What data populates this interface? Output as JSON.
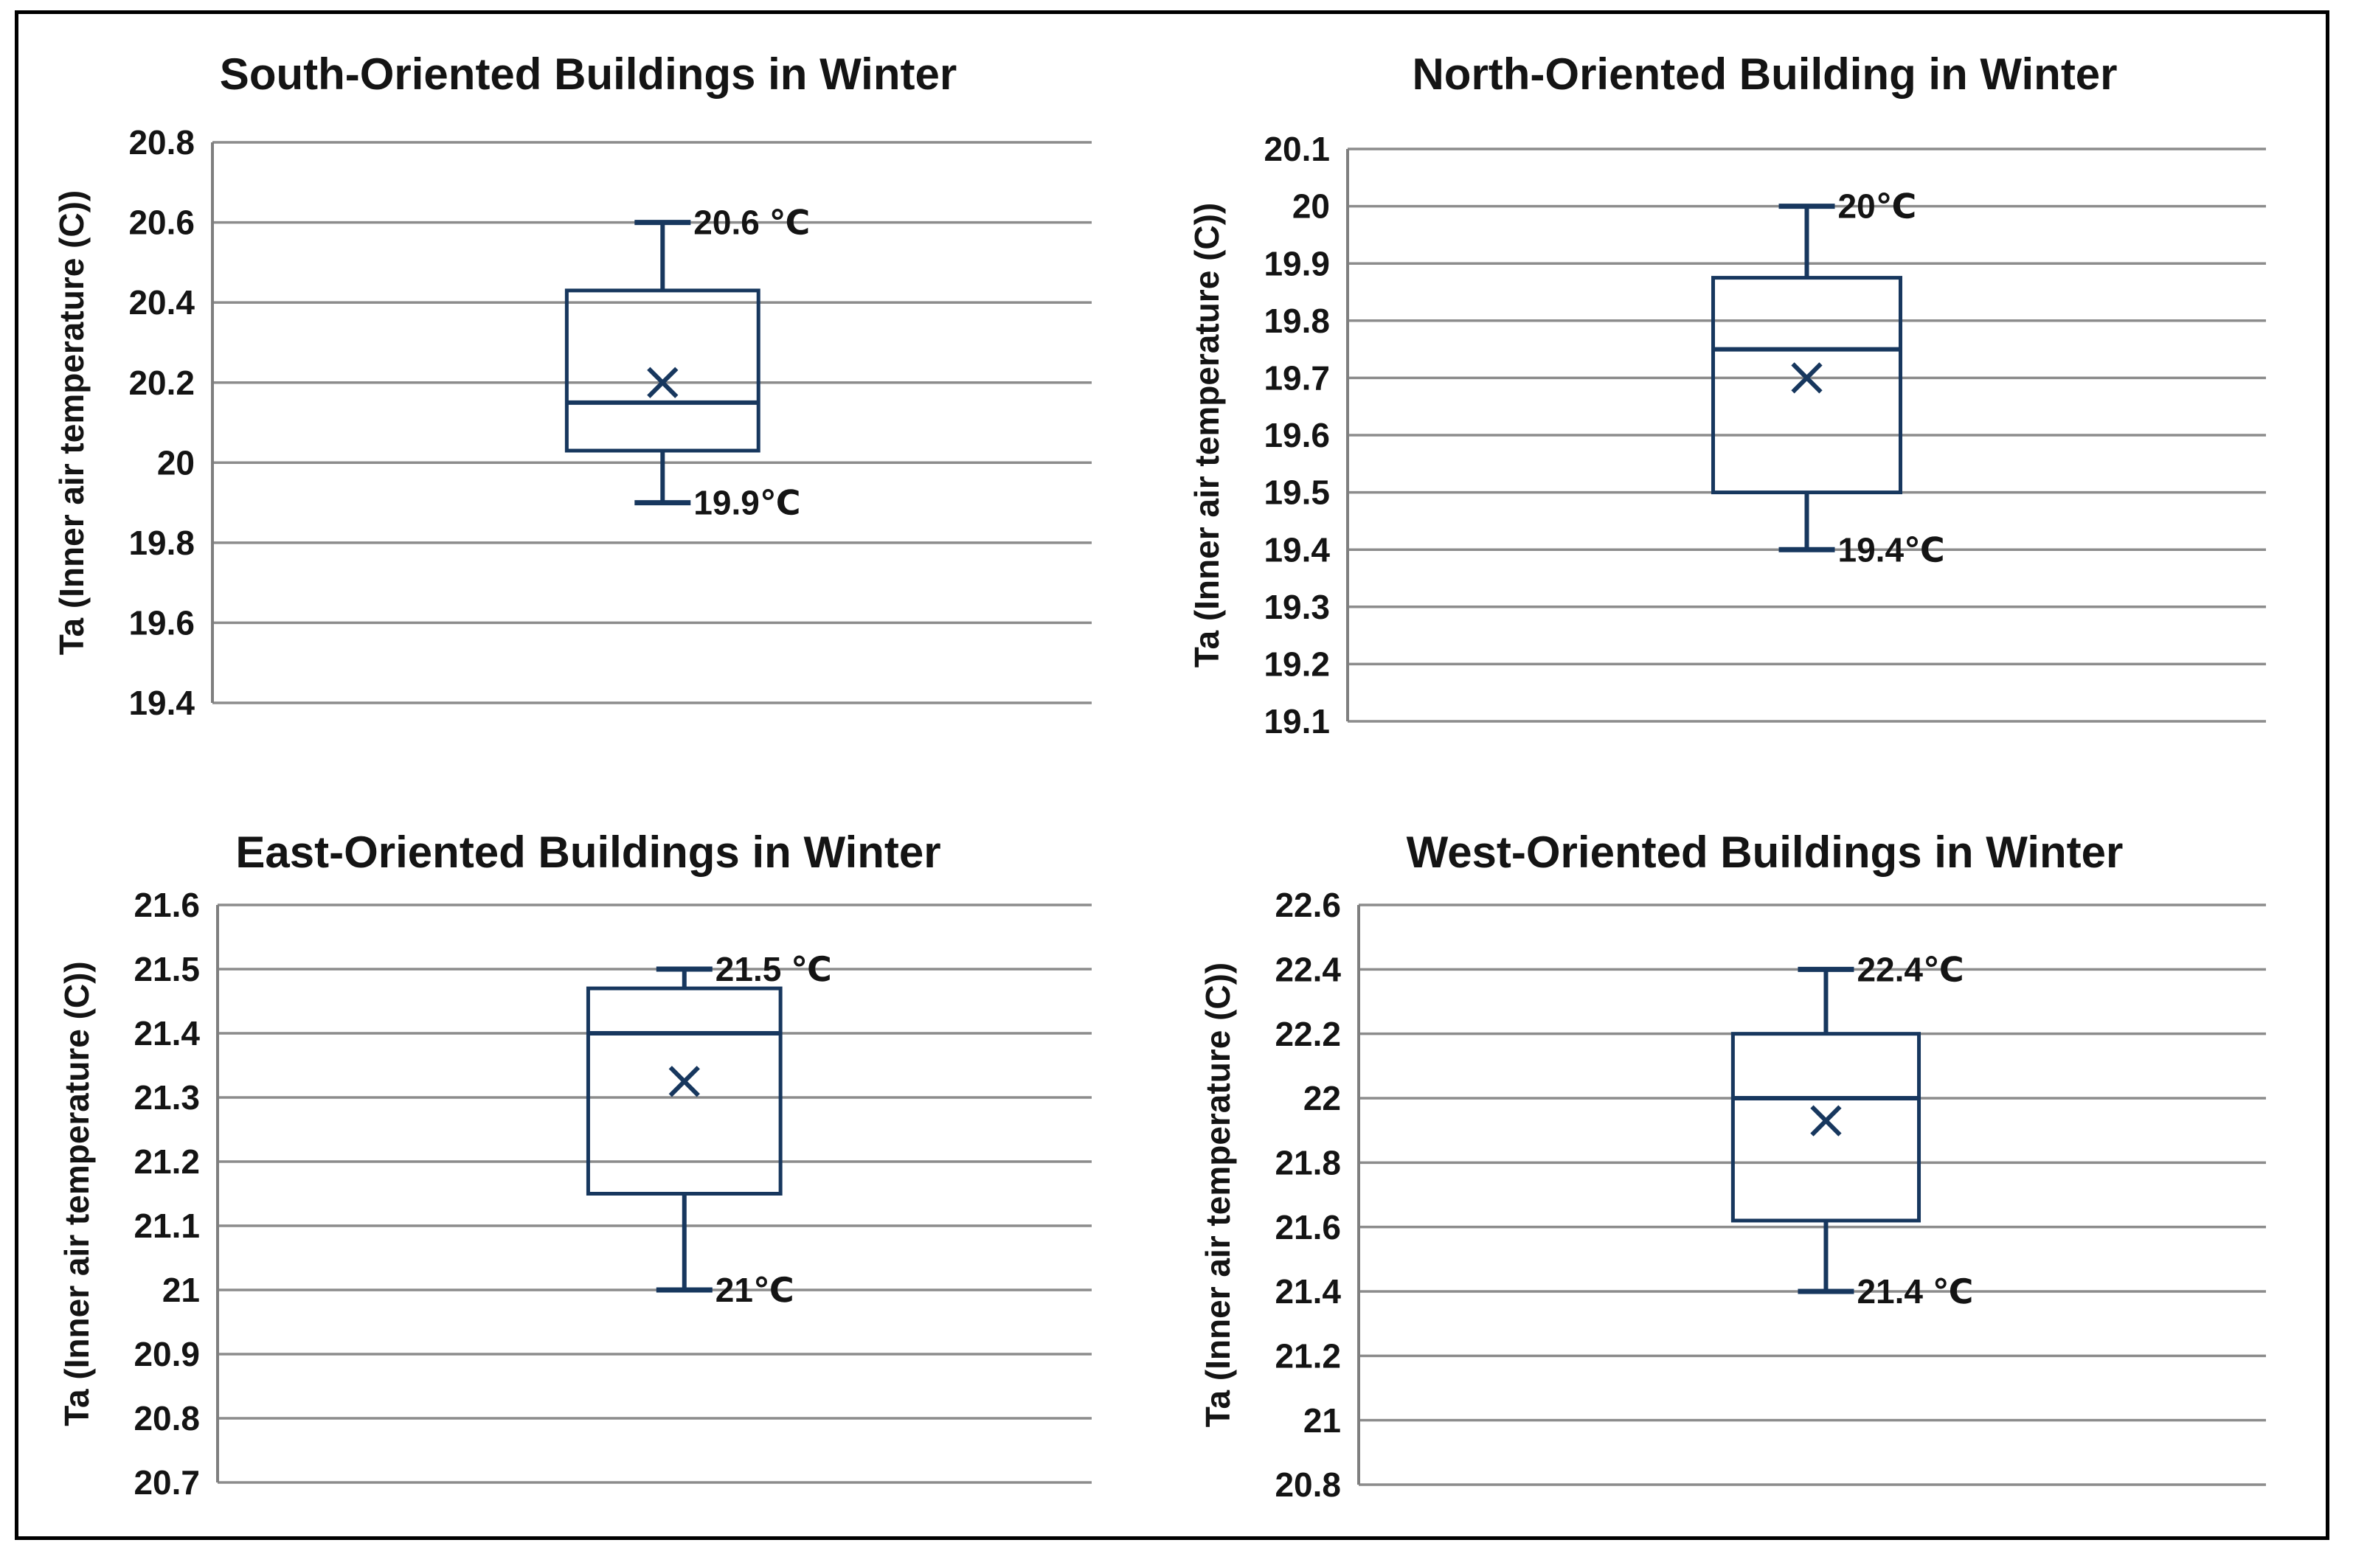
{
  "style": {
    "background": "#FFFFFF",
    "frame_color": "#000000",
    "box_color": "#17375E",
    "grid_color": "#8C8C8C",
    "axis_color": "#7F7F7F",
    "text_color": "#141414"
  },
  "chart_data": [
    {
      "type": "box",
      "title": "South-Oriented Buildings in Winter",
      "ylabel": "Ta (Inner air temperature (C))",
      "ylim": [
        19.4,
        20.8
      ],
      "grid": true,
      "tick_side": "left",
      "ticks": [
        {
          "v": 20.8,
          "label": "20.8"
        },
        {
          "v": 20.6,
          "label": "20.6"
        },
        {
          "v": 20.4,
          "label": "20.4"
        },
        {
          "v": 20.2,
          "label": "20.2"
        },
        {
          "v": 20.0,
          "label": "20"
        },
        {
          "v": 19.8,
          "label": "19.8"
        },
        {
          "v": 19.6,
          "label": "19.6"
        },
        {
          "v": 19.4,
          "label": "19.4"
        }
      ],
      "box": {
        "whisker_min": 19.9,
        "q1": 20.03,
        "median": 20.15,
        "mean": 20.2,
        "q3": 20.43,
        "whisker_max": 20.6
      },
      "annotations": {
        "max_label": "20.6 ℃",
        "min_label": "19.9℃"
      },
      "layout": {
        "box_center_frac": 0.512,
        "box_width_frac": 0.218
      }
    },
    {
      "type": "box",
      "title": "North-Oriented Building in Winter",
      "ylabel": "Ta (Inner air temperature (C))",
      "ylim": [
        19.1,
        20.1
      ],
      "grid": true,
      "tick_side": "left",
      "ticks": [
        {
          "v": 20.1,
          "label": "20.1"
        },
        {
          "v": 20.0,
          "label": "20"
        },
        {
          "v": 19.9,
          "label": "19.9"
        },
        {
          "v": 19.8,
          "label": "19.8"
        },
        {
          "v": 19.7,
          "label": "19.7"
        },
        {
          "v": 19.6,
          "label": "19.6"
        },
        {
          "v": 19.5,
          "label": "19.5"
        },
        {
          "v": 19.4,
          "label": "19.4"
        },
        {
          "v": 19.3,
          "label": "19.3"
        },
        {
          "v": 19.2,
          "label": "19.2"
        },
        {
          "v": 19.1,
          "label": "19.1"
        }
      ],
      "box": {
        "whisker_min": 19.4,
        "q1": 19.5,
        "median": 19.75,
        "mean": 19.7,
        "q3": 19.875,
        "whisker_max": 20.0
      },
      "annotations": {
        "max_label": "20℃",
        "min_label": "19.4℃"
      },
      "layout": {
        "box_center_frac": 0.5,
        "box_width_frac": 0.204
      }
    },
    {
      "type": "box",
      "title": "East-Oriented Buildings in Winter",
      "ylabel": "Ta (Inner air temperature (C))",
      "ylim": [
        20.7,
        21.6
      ],
      "grid": true,
      "tick_side": "left",
      "ticks": [
        {
          "v": 21.6,
          "label": "21.6"
        },
        {
          "v": 21.5,
          "label": "21.5"
        },
        {
          "v": 21.4,
          "label": "21.4"
        },
        {
          "v": 21.3,
          "label": "21.3"
        },
        {
          "v": 21.2,
          "label": "21.2"
        },
        {
          "v": 21.1,
          "label": "21.1"
        },
        {
          "v": 21.0,
          "label": "21"
        },
        {
          "v": 20.9,
          "label": "20.9"
        },
        {
          "v": 20.8,
          "label": "20.8"
        },
        {
          "v": 20.7,
          "label": "20.7"
        }
      ],
      "box": {
        "whisker_min": 21.0,
        "q1": 21.15,
        "median": 21.4,
        "mean": 21.325,
        "q3": 21.47,
        "whisker_max": 21.5
      },
      "annotations": {
        "max_label": "21.5 ℃",
        "min_label": "21℃"
      },
      "layout": {
        "box_center_frac": 0.534,
        "box_width_frac": 0.22
      }
    },
    {
      "type": "box",
      "title": "West-Oriented Buildings in Winter",
      "ylabel": "Ta (Inner air temperature (C))",
      "ylim": [
        20.8,
        22.6
      ],
      "grid": true,
      "tick_side": "left",
      "ticks": [
        {
          "v": 22.6,
          "label": "22.6"
        },
        {
          "v": 22.4,
          "label": "22.4"
        },
        {
          "v": 22.2,
          "label": "22.2"
        },
        {
          "v": 22.0,
          "label": "22"
        },
        {
          "v": 21.8,
          "label": "21.8"
        },
        {
          "v": 21.6,
          "label": "21.6"
        },
        {
          "v": 21.4,
          "label": "21.4"
        },
        {
          "v": 21.2,
          "label": "21.2"
        },
        {
          "v": 21.0,
          "label": "21"
        },
        {
          "v": 20.8,
          "label": "20.8"
        }
      ],
      "box": {
        "whisker_min": 21.4,
        "q1": 21.62,
        "median": 22.0,
        "mean": 21.93,
        "q3": 22.2,
        "whisker_max": 22.4
      },
      "annotations": {
        "max_label": "22.4℃",
        "min_label": "21.4 ℃"
      },
      "layout": {
        "box_center_frac": 0.515,
        "box_width_frac": 0.205
      }
    }
  ]
}
